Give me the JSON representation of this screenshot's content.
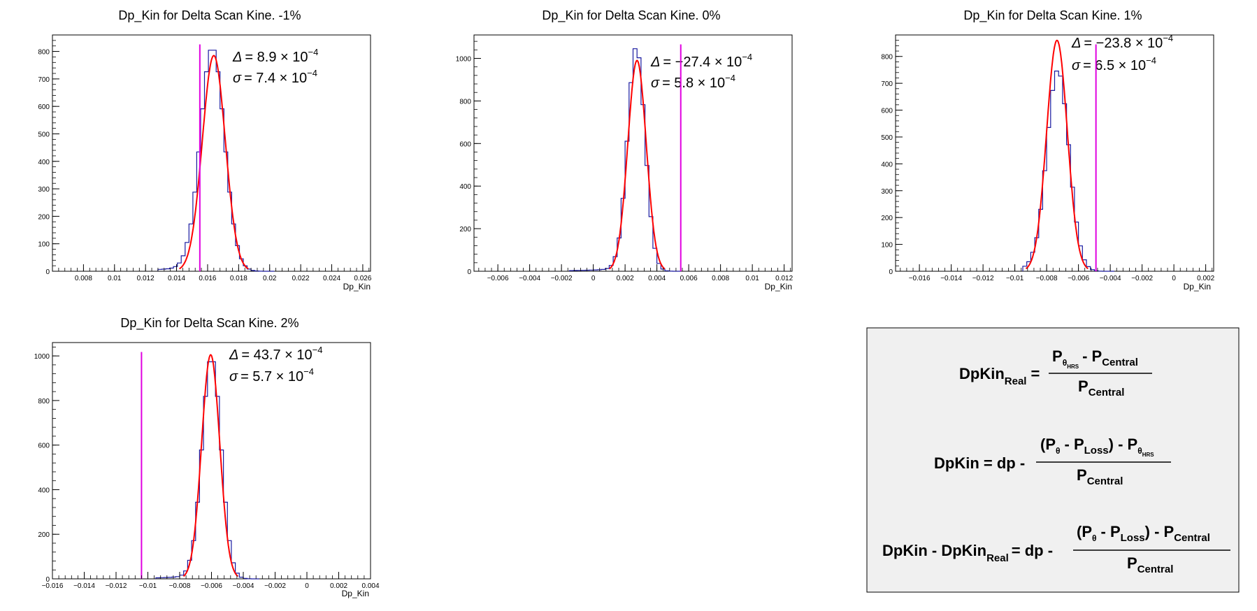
{
  "colors": {
    "histogram": "#1a1aa0",
    "fit": "#ff0000",
    "marker": "#e000e0",
    "formula_bg": "#f0f0f0"
  },
  "chart_data": [
    {
      "type": "histogram",
      "title": "Dp_Kin for Delta Scan Kine. -1%",
      "xlabel": "Dp_Kin",
      "xlim": [
        0.006,
        0.0265
      ],
      "ylim": [
        0,
        860
      ],
      "xticks": [
        0.008,
        0.01,
        0.012,
        0.014,
        0.016,
        0.018,
        0.02,
        0.022,
        0.024,
        0.026
      ],
      "xtick_labels": [
        "0.008",
        "0.01",
        "0.012",
        "0.014",
        "0.016",
        "0.018",
        "0.02",
        "0.022",
        "0.024",
        "0.026"
      ],
      "yticks": [
        0,
        100,
        200,
        300,
        400,
        500,
        600,
        700,
        800
      ],
      "ytick_labels": [
        "0",
        "100",
        "200",
        "300",
        "400",
        "500",
        "600",
        "700",
        "800"
      ],
      "fit": {
        "type": "gaussian",
        "mean": 0.0164,
        "sigma": 0.00074,
        "amplitude": 785
      },
      "histogram": {
        "bin_width": 0.00025,
        "mean": 0.0163,
        "sigma": 0.00078,
        "peak": 815,
        "tail_low": 0.0128
      },
      "marker_x": 0.0155,
      "annotations": {
        "delta_symbol": "Δ",
        "delta_value": "= 8.9 × 10",
        "delta_exp": "−4",
        "sigma_symbol": "σ",
        "sigma_value": "= 7.4 × 10",
        "sigma_exp": "−4"
      }
    },
    {
      "type": "histogram",
      "title": "Dp_Kin for Delta Scan Kine. 0%",
      "xlabel": "Dp_Kin",
      "xlim": [
        -0.0075,
        0.0125
      ],
      "ylim": [
        0,
        1110
      ],
      "xticks": [
        -0.006,
        -0.004,
        -0.002,
        0,
        0.002,
        0.004,
        0.006,
        0.008,
        0.01,
        0.012
      ],
      "xtick_labels": [
        "−0.006",
        "−0.004",
        "−0.002",
        "0",
        "0.002",
        "0.004",
        "0.006",
        "0.008",
        "0.01",
        "0.012"
      ],
      "yticks": [
        0,
        200,
        400,
        600,
        800,
        1000
      ],
      "ytick_labels": [
        "0",
        "200",
        "400",
        "600",
        "800",
        "1000"
      ],
      "fit": {
        "type": "gaussian",
        "mean": 0.00275,
        "sigma": 0.00058,
        "amplitude": 990
      },
      "histogram": {
        "bin_width": 0.00025,
        "mean": 0.0027,
        "sigma": 0.00055,
        "peak": 1055,
        "tail_low": -0.0015
      },
      "marker_x": 0.0055,
      "annotations": {
        "delta_symbol": "Δ",
        "delta_value": "= −27.4 × 10",
        "delta_exp": "−4",
        "sigma_symbol": "σ",
        "sigma_value": "= 5.8 × 10",
        "sigma_exp": "−4"
      }
    },
    {
      "type": "histogram",
      "title": "Dp_Kin for Delta Scan Kine. 1%",
      "xlabel": "Dp_Kin",
      "xlim": [
        -0.0175,
        0.0025
      ],
      "ylim": [
        0,
        880
      ],
      "xticks": [
        -0.016,
        -0.014,
        -0.012,
        -0.01,
        -0.008,
        -0.006,
        -0.004,
        -0.002,
        0,
        0.002
      ],
      "xtick_labels": [
        "−0.016",
        "−0.014",
        "−0.012",
        "−0.01",
        "−0.008",
        "−0.006",
        "−0.004",
        "−0.002",
        "0",
        "0.002"
      ],
      "yticks": [
        0,
        100,
        200,
        300,
        400,
        500,
        600,
        700,
        800
      ],
      "ytick_labels": [
        "0",
        "100",
        "200",
        "300",
        "400",
        "500",
        "600",
        "700",
        "800"
      ],
      "fit": {
        "type": "gaussian",
        "mean": -0.00735,
        "sigma": 0.00065,
        "amplitude": 860
      },
      "histogram": {
        "bin_width": 0.00025,
        "mean": -0.0073,
        "sigma": 0.0007,
        "peak": 750,
        "tail_low": -0.0095
      },
      "marker_x": -0.0049,
      "annotations": {
        "delta_symbol": "Δ",
        "delta_value": "= −23.8 × 10",
        "delta_exp": "−4",
        "sigma_symbol": "σ",
        "sigma_value": "= 6.5 × 10",
        "sigma_exp": "−4"
      }
    },
    {
      "type": "histogram",
      "title": "Dp_Kin for Delta Scan Kine. 2%",
      "xlabel": "Dp_Kin",
      "xlim": [
        -0.016,
        0.004
      ],
      "ylim": [
        0,
        1060
      ],
      "xticks": [
        -0.016,
        -0.014,
        -0.012,
        -0.01,
        -0.008,
        -0.006,
        -0.004,
        -0.002,
        0,
        0.002,
        0.004
      ],
      "xtick_labels": [
        "−0.016",
        "−0.014",
        "−0.012",
        "−0.01",
        "−0.008",
        "−0.006",
        "−0.004",
        "−0.002",
        "0",
        "0.002",
        "0.004"
      ],
      "yticks": [
        0,
        200,
        400,
        600,
        800,
        1000
      ],
      "ytick_labels": [
        "0",
        "200",
        "400",
        "600",
        "800",
        "1000"
      ],
      "fit": {
        "type": "gaussian",
        "mean": -0.00605,
        "sigma": 0.00057,
        "amplitude": 1005
      },
      "histogram": {
        "bin_width": 0.00025,
        "mean": -0.006,
        "sigma": 0.0006,
        "peak": 995,
        "tail_low": -0.0095
      },
      "marker_x": -0.0104,
      "annotations": {
        "delta_symbol": "Δ",
        "delta_value": "= 43.7 × 10",
        "delta_exp": "−4",
        "sigma_symbol": "σ",
        "sigma_value": "= 5.7 × 10",
        "sigma_exp": "−4"
      }
    }
  ],
  "formula_box": {
    "eq1": {
      "lhs": "DpKin",
      "lhs_sub": "Real",
      "eq": "=",
      "num_p": "P",
      "num_p_sub": "θ",
      "num_p_subsub": "HRS",
      "num_rest": "- P",
      "num_rest_sub": "Central",
      "den": "P",
      "den_sub": "Central"
    },
    "eq2": {
      "lhs": "DpKin = dp -",
      "num_a": "(P",
      "num_a_sub": "θ",
      "num_b": "- P",
      "num_b_sub": "Loss",
      "num_c": ") - P",
      "num_c_sub": "θ",
      "num_c_subsub": "HRS",
      "den": "P",
      "den_sub": "Central"
    },
    "eq3": {
      "lhs": "DpKin - DpKin",
      "lhs_sub": "Real",
      "lhs_rest": "= dp -",
      "num_a": "(P",
      "num_a_sub": "θ",
      "num_b": "- P",
      "num_b_sub": "Loss",
      "num_c": ") - P",
      "num_c_sub": "Central",
      "den": "P",
      "den_sub": "Central"
    }
  }
}
